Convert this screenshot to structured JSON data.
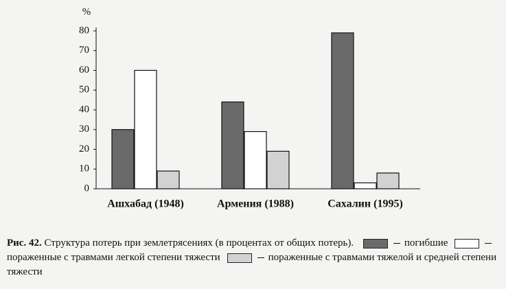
{
  "chart_data": {
    "type": "bar",
    "y_label": "%",
    "categories": [
      "Ашхабад (1948)",
      "Армения (1988)",
      "Сахалин (1995)"
    ],
    "series": [
      {
        "name": "погибшие",
        "color": "#6a6a6a",
        "values": [
          30,
          44,
          79
        ]
      },
      {
        "name": "пораженные с травмами легкой степени тяжести",
        "color": "#ffffff",
        "values": [
          60,
          29,
          3
        ]
      },
      {
        "name": "пораженные с травмами тяжелой и средней степени тяжести",
        "color": "#d2d2d2",
        "values": [
          9,
          19,
          8
        ]
      }
    ],
    "ylim": [
      0,
      80
    ],
    "yticks": [
      0,
      10,
      20,
      30,
      40,
      50,
      60,
      70,
      80
    ],
    "grid": false,
    "caption": {
      "label": "Рис. 42.",
      "text": "Структура потерь при землетрясениях (в процентах от общих потерь)."
    }
  }
}
